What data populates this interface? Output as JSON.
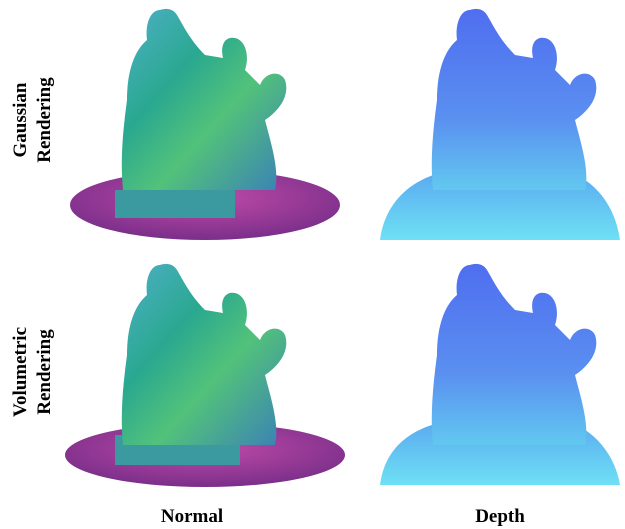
{
  "row_labels": [
    [
      "Gaussian",
      "Rendering"
    ],
    [
      "Volumetric",
      "Rendering"
    ]
  ],
  "column_labels": [
    "Normal",
    "Depth"
  ]
}
